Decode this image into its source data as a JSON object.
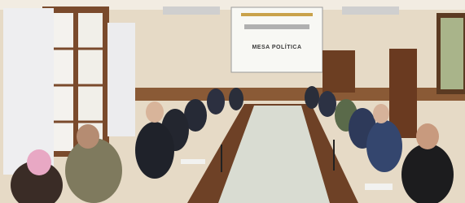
{
  "screen": {
    "title": "MESA POLÍTICA"
  }
}
